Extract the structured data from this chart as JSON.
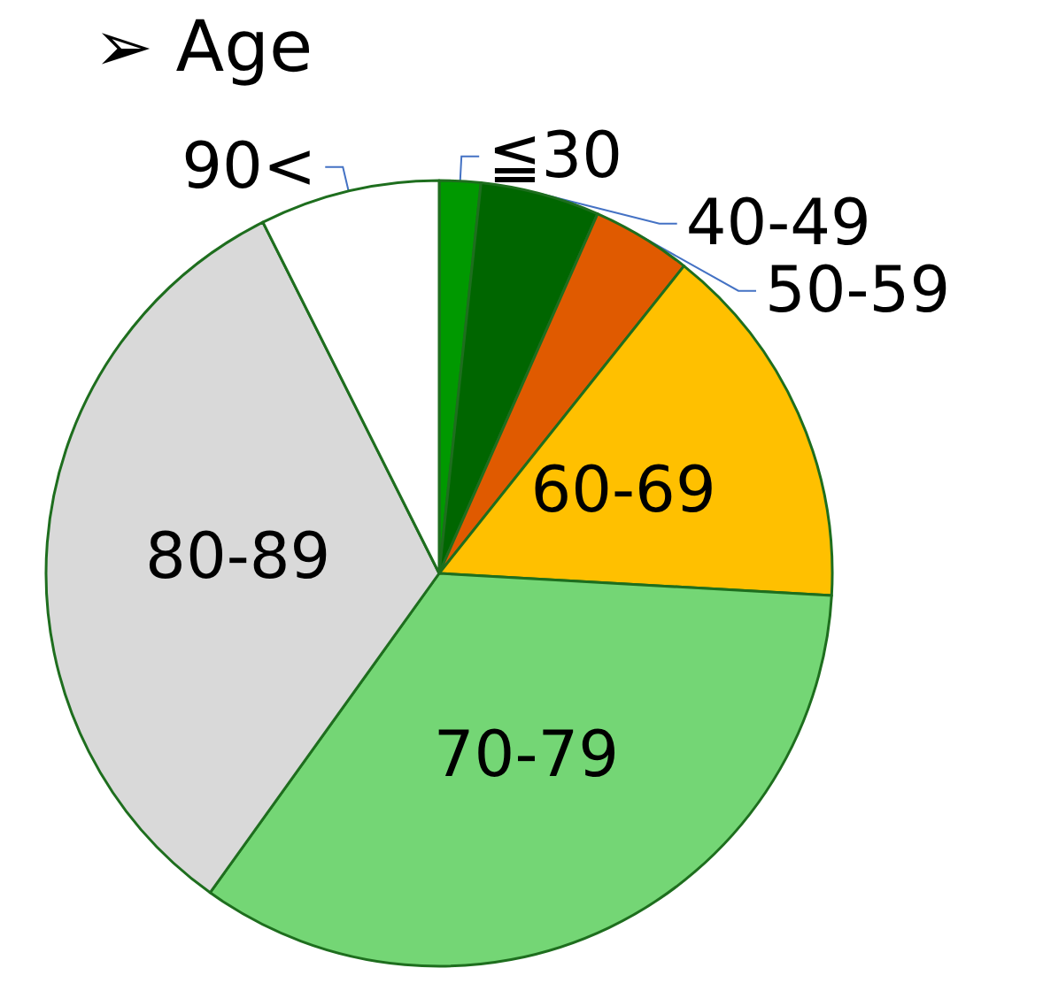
{
  "chart_data": {
    "type": "pie",
    "title": "➢ Age",
    "categories": [
      "≦30",
      "40-49",
      "50-59",
      "60-69",
      "70-79",
      "80-89",
      "90<"
    ],
    "values": [
      1.7,
      4.9,
      4.1,
      15.2,
      34.0,
      32.7,
      7.4
    ],
    "colors": [
      "#009900",
      "#006600",
      "#e05a00",
      "#ffc000",
      "#74d675",
      "#d9d9d9",
      "#ffffff"
    ],
    "legend": false
  }
}
